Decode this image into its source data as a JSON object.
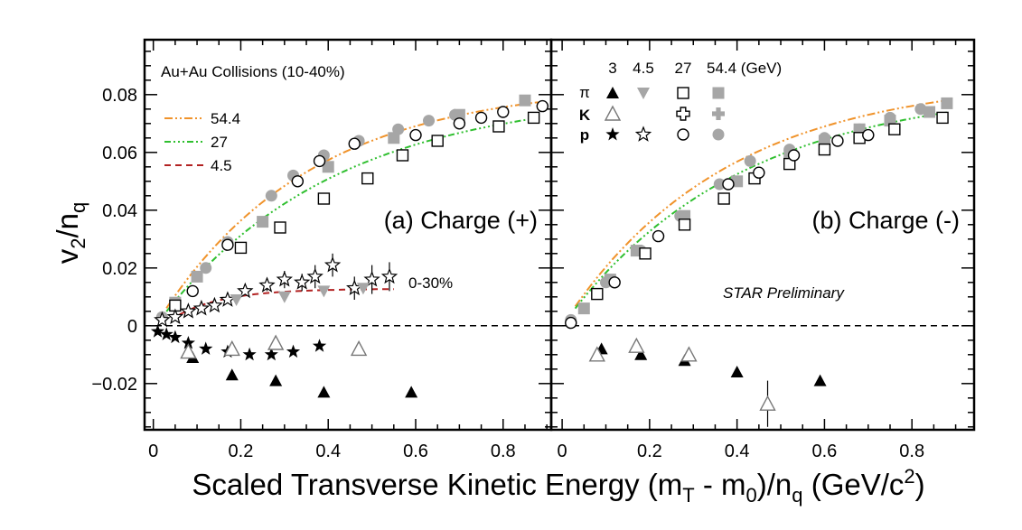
{
  "chart_data": {
    "type": "scatter",
    "ylabel": "v2/nq",
    "xlabel": "Scaled Transverse Kinetic Energy (mT - m0)/nq (GeV/c2)",
    "x_ticks": [
      "0",
      "0.2",
      "0.4",
      "0.6",
      "0.8"
    ],
    "y_ticks": [
      "−0.02",
      "0",
      "0.02",
      "0.04",
      "0.06",
      "0.08"
    ],
    "xlim": [
      -0.02,
      0.91
    ],
    "ylim": [
      -0.036,
      0.099
    ],
    "legend_header": {
      "e3": "3",
      "e45": "4.5",
      "e27": "27",
      "e54": "54.4 (GeV)"
    },
    "species": {
      "pi": "π",
      "k": "K",
      "p": "p"
    },
    "panels": [
      {
        "label": "(a) Charge (+)",
        "system": "Au+Au Collisions (10-40%)",
        "fit_legend": [
          {
            "label": "54.4",
            "color": "#f0932b"
          },
          {
            "label": "27",
            "color": "#2fbf2f"
          },
          {
            "label": "4.5",
            "color": "#b22222"
          }
        ],
        "annotation": "0-30%",
        "series": [
          {
            "name": "pi 54.4 GeV",
            "x": [
              0.05,
              0.1,
              0.25,
              0.4,
              0.55,
              0.7,
              0.85
            ],
            "y": [
              0.008,
              0.017,
              0.036,
              0.055,
              0.065,
              0.073,
              0.078
            ]
          },
          {
            "name": "p 54.4 GeV",
            "x": [
              0.02,
              0.12,
              0.17,
              0.27,
              0.32,
              0.39,
              0.47,
              0.56,
              0.63,
              0.69
            ],
            "y": [
              0.003,
              0.02,
              0.029,
              0.045,
              0.052,
              0.059,
              0.064,
              0.068,
              0.071,
              0.073
            ]
          },
          {
            "name": "pi 27 GeV",
            "x": [
              0.05,
              0.2,
              0.29,
              0.39,
              0.49,
              0.57,
              0.65,
              0.79,
              0.87
            ],
            "y": [
              0.007,
              0.027,
              0.034,
              0.044,
              0.051,
              0.059,
              0.064,
              0.069,
              0.072
            ]
          },
          {
            "name": "p 27 GeV",
            "x": [
              0.09,
              0.17,
              0.33,
              0.38,
              0.46,
              0.6,
              0.7,
              0.75,
              0.8,
              0.89
            ],
            "y": [
              0.012,
              0.028,
              0.05,
              0.057,
              0.063,
              0.066,
              0.07,
              0.072,
              0.074,
              0.076
            ]
          },
          {
            "name": "p 4.5 GeV",
            "x": [
              0.02,
              0.05,
              0.08,
              0.11,
              0.14,
              0.17,
              0.21,
              0.26,
              0.3,
              0.34,
              0.37,
              0.41,
              0.46,
              0.5,
              0.54
            ],
            "y": [
              0.002,
              0.003,
              0.005,
              0.006,
              0.007,
              0.009,
              0.012,
              0.014,
              0.016,
              0.015,
              0.017,
              0.021,
              0.013,
              0.016,
              0.017
            ]
          },
          {
            "name": "pi 4.5 GeV",
            "x": [
              0.19,
              0.3,
              0.39,
              0.48
            ],
            "y": [
              0.009,
              0.01,
              0.012,
              0.013
            ]
          },
          {
            "name": "p 3 GeV",
            "x": [
              0.01,
              0.03,
              0.05,
              0.08,
              0.12,
              0.17,
              0.22,
              0.27,
              0.32,
              0.38
            ],
            "y": [
              -0.002,
              -0.003,
              -0.004,
              -0.006,
              -0.008,
              -0.009,
              -0.01,
              -0.01,
              -0.009,
              -0.007
            ]
          },
          {
            "name": "pi 3 GeV",
            "x": [
              0.09,
              0.18,
              0.28,
              0.39,
              0.59
            ],
            "y": [
              -0.011,
              -0.017,
              -0.019,
              -0.023,
              -0.023
            ]
          },
          {
            "name": "K 3 GeV",
            "x": [
              0.08,
              0.18,
              0.28,
              0.47
            ],
            "y": [
              -0.009,
              -0.008,
              -0.006,
              -0.008
            ]
          }
        ]
      },
      {
        "label": "(b) Charge (-)",
        "preliminary": "STAR Preliminary",
        "series": [
          {
            "name": "pi 54.4 GeV",
            "x": [
              0.05,
              0.11,
              0.17,
              0.28,
              0.4,
              0.52,
              0.6,
              0.68,
              0.75,
              0.84,
              0.88
            ],
            "y": [
              0.006,
              0.016,
              0.026,
              0.038,
              0.05,
              0.059,
              0.064,
              0.068,
              0.071,
              0.074,
              0.077
            ]
          },
          {
            "name": "p 54.4 GeV",
            "x": [
              0.02,
              0.1,
              0.18,
              0.27,
              0.36,
              0.43,
              0.52,
              0.6,
              0.68,
              0.75,
              0.82
            ],
            "y": [
              0.002,
              0.015,
              0.026,
              0.038,
              0.049,
              0.057,
              0.061,
              0.065,
              0.068,
              0.072,
              0.075
            ]
          },
          {
            "name": "pi 27 GeV",
            "x": [
              0.08,
              0.19,
              0.28,
              0.37,
              0.44,
              0.52,
              0.6,
              0.68,
              0.76,
              0.87
            ],
            "y": [
              0.011,
              0.025,
              0.035,
              0.044,
              0.051,
              0.056,
              0.061,
              0.065,
              0.068,
              0.072
            ]
          },
          {
            "name": "p 27 GeV",
            "x": [
              0.02,
              0.12,
              0.22,
              0.38,
              0.45,
              0.53,
              0.63,
              0.7
            ],
            "y": [
              0.001,
              0.015,
              0.031,
              0.049,
              0.053,
              0.059,
              0.064,
              0.066
            ]
          },
          {
            "name": "pi 3 GeV",
            "x": [
              0.09,
              0.18,
              0.28,
              0.4,
              0.59
            ],
            "y": [
              -0.008,
              -0.01,
              -0.012,
              -0.016,
              -0.019
            ]
          },
          {
            "name": "K 3 GeV",
            "x": [
              0.08,
              0.17,
              0.29,
              0.47
            ],
            "y": [
              -0.01,
              -0.007,
              -0.01,
              -0.027
            ]
          }
        ]
      }
    ]
  },
  "colors": {
    "gray": "#a6a6a6",
    "black": "#000000"
  }
}
